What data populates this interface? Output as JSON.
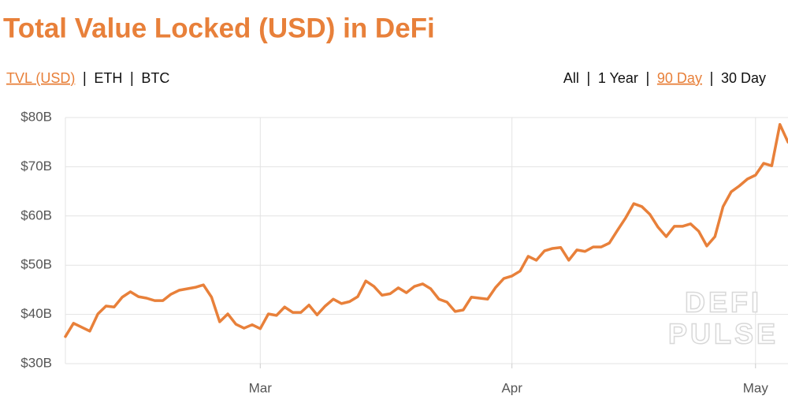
{
  "chart_data": {
    "type": "line",
    "title": "Total Value Locked (USD) in DeFi",
    "left_tabs": {
      "items": [
        "TVL (USD)",
        "ETH",
        "BTC"
      ],
      "active": 0
    },
    "right_tabs": {
      "items": [
        "All",
        "1 Year",
        "90 Day",
        "30 Day"
      ],
      "active": 2
    },
    "watermark": [
      "DEFI",
      "PULSE"
    ],
    "categories": [
      null,
      null,
      null,
      null,
      null,
      null,
      null,
      null,
      null,
      null,
      null,
      null,
      null,
      null,
      null,
      null,
      null,
      null,
      null,
      null,
      null,
      null,
      null,
      null,
      "Mar",
      null,
      null,
      null,
      null,
      null,
      null,
      null,
      null,
      null,
      null,
      null,
      null,
      null,
      null,
      null,
      null,
      null,
      null,
      null,
      null,
      null,
      null,
      null,
      null,
      null,
      null,
      null,
      null,
      null,
      null,
      "Apr",
      null,
      null,
      null,
      null,
      null,
      null,
      null,
      null,
      null,
      null,
      null,
      null,
      null,
      null,
      null,
      null,
      null,
      null,
      null,
      null,
      null,
      null,
      null,
      null,
      null,
      null,
      null,
      null,
      null,
      "May",
      null,
      null,
      null,
      null
    ],
    "series": [
      {
        "name": "TVL (USD)",
        "color": "#e8803a",
        "values": [
          35.5,
          38.2,
          37.4,
          36.6,
          40.1,
          41.7,
          41.5,
          43.5,
          44.6,
          43.6,
          43.3,
          42.8,
          42.8,
          44.1,
          44.9,
          45.2,
          45.5,
          46.0,
          43.5,
          38.5,
          40.1,
          38.0,
          37.2,
          37.9,
          37.1,
          40.1,
          39.8,
          41.5,
          40.4,
          40.4,
          41.9,
          39.9,
          41.7,
          43.1,
          42.2,
          42.6,
          43.6,
          46.8,
          45.7,
          43.9,
          44.2,
          45.4,
          44.4,
          45.7,
          46.2,
          45.2,
          43.1,
          42.5,
          40.6,
          40.9,
          43.5,
          43.3,
          43.1,
          45.5,
          47.3,
          47.8,
          48.8,
          51.8,
          51.0,
          52.9,
          53.4,
          53.6,
          51.0,
          53.1,
          52.8,
          53.7,
          53.7,
          54.5,
          57.1,
          59.6,
          62.5,
          61.9,
          60.3,
          57.7,
          55.8,
          57.9,
          57.9,
          58.4,
          56.9,
          53.9,
          55.8,
          61.9,
          64.9,
          66.1,
          67.5,
          68.3,
          70.7,
          70.2,
          78.6,
          75.0
        ]
      }
    ],
    "ylim": [
      30,
      80
    ],
    "yticks": [
      {
        "value": 30,
        "label": "$30B"
      },
      {
        "value": 40,
        "label": "$40B"
      },
      {
        "value": 50,
        "label": "$50B"
      },
      {
        "value": 60,
        "label": "$60B"
      },
      {
        "value": 70,
        "label": "$70B"
      },
      {
        "value": 80,
        "label": "$80B"
      }
    ],
    "grid": true
  }
}
